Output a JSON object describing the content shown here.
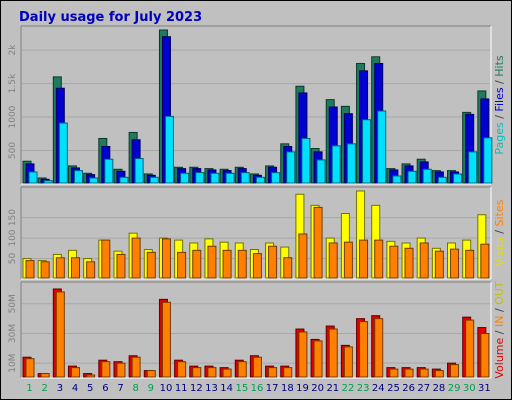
{
  "title": "Daily usage for July 2023",
  "colors": {
    "background": "#c0c0c0",
    "hits": "#1e7b5e",
    "files": "#0000d0",
    "pages": "#00e0ff",
    "visits": "#ffff00",
    "sites": "#ff8000",
    "volume": "#e00000",
    "kbin": "#ff8000",
    "kbout": "#c0c000",
    "weekday": "#000080",
    "weekend": "#00a050"
  },
  "side_labels": {
    "top": [
      {
        "text": "Pages",
        "color": "#00c0c0"
      },
      {
        "text": " / ",
        "color": "#404040"
      },
      {
        "text": "Files",
        "color": "#0000d0"
      },
      {
        "text": " / ",
        "color": "#404040"
      },
      {
        "text": "Hits",
        "color": "#1e7b5e"
      }
    ],
    "middle": [
      {
        "text": "Visits",
        "color": "#e0e000"
      },
      {
        "text": " / ",
        "color": "#404040"
      },
      {
        "text": "Sites",
        "color": "#ff8000"
      }
    ],
    "bottom": [
      {
        "text": "Volume",
        "color": "#e00000"
      },
      {
        "text": " / ",
        "color": "#404040"
      },
      {
        "text": "IN",
        "color": "#ff8000"
      },
      {
        "text": " / ",
        "color": "#404040"
      },
      {
        "text": "OUT",
        "color": "#c0c000"
      }
    ]
  },
  "chart_data": {
    "type": "bar",
    "title": "Daily usage for July 2023",
    "days": [
      "1",
      "2",
      "3",
      "4",
      "5",
      "6",
      "7",
      "8",
      "9",
      "10",
      "11",
      "12",
      "13",
      "14",
      "15",
      "16",
      "17",
      "18",
      "19",
      "20",
      "21",
      "22",
      "23",
      "24",
      "25",
      "26",
      "27",
      "28",
      "29",
      "30",
      "31"
    ],
    "weekend_days": [
      "1",
      "2",
      "8",
      "9",
      "15",
      "16",
      "22",
      "23",
      "29",
      "30"
    ],
    "panels": [
      {
        "name": "Pages / Files / Hits",
        "ylim": [
          0,
          2300
        ],
        "yticks": [
          {
            "value": 500,
            "label": "500"
          },
          {
            "value": 1000,
            "label": "1000"
          },
          {
            "value": 1500,
            "label": "1.5k"
          },
          {
            "value": 2000,
            "label": "2k"
          }
        ],
        "series": [
          {
            "name": "Hits",
            "color": "#1e7b5e",
            "values": [
              340,
              90,
              1600,
              270,
              160,
              680,
              220,
              770,
              150,
              2300,
              250,
              250,
              230,
              220,
              250,
              150,
              270,
              600,
              1460,
              530,
              1260,
              1160,
              1800,
              1900,
              230,
              300,
              370,
              200,
              200,
              1070,
              1390
            ]
          },
          {
            "name": "Files",
            "color": "#0000d0",
            "values": [
              300,
              70,
              1430,
              240,
              140,
              560,
              190,
              660,
              130,
              2200,
              230,
              230,
              210,
              200,
              230,
              130,
              250,
              560,
              1360,
              480,
              1150,
              1050,
              1690,
              1800,
              210,
              270,
              330,
              180,
              180,
              1040,
              1270
            ]
          },
          {
            "name": "Pages",
            "color": "#00e0ff",
            "values": [
              180,
              50,
              910,
              200,
              90,
              370,
              100,
              380,
              100,
              1010,
              160,
              170,
              160,
              160,
              170,
              100,
              170,
              480,
              680,
              360,
              570,
              600,
              960,
              1090,
              120,
              190,
              220,
              100,
              150,
              480,
              690
            ]
          }
        ]
      },
      {
        "name": "Visits / Sites",
        "ylim": [
          0,
          215
        ],
        "yticks": [
          {
            "value": 50,
            "label": "50"
          },
          {
            "value": 100,
            "label": "100"
          },
          {
            "value": 150,
            "label": "150"
          }
        ],
        "series": [
          {
            "name": "Visits",
            "color": "#ffff00",
            "values": [
              50,
              45,
              60,
              70,
              50,
              95,
              68,
              112,
              72,
              100,
              95,
              88,
              98,
              90,
              88,
              72,
              88,
              78,
              207,
              180,
              100,
              160,
              215,
              180,
              92,
              88,
              100,
              75,
              88,
              95,
              157
            ]
          },
          {
            "name": "Sites",
            "color": "#ff8000",
            "values": [
              45,
              42,
              52,
              52,
              42,
              95,
              60,
              100,
              65,
              98,
              65,
              70,
              80,
              70,
              70,
              62,
              80,
              52,
              110,
              175,
              88,
              90,
              95,
              95,
              80,
              75,
              88,
              68,
              73,
              70,
              85
            ]
          }
        ]
      },
      {
        "name": "Volume / IN / OUT",
        "units": "MB",
        "ylim": [
          0,
          62
        ],
        "yticks": [
          {
            "value": 10,
            "label": "10M"
          },
          {
            "value": 30,
            "label": "30M"
          },
          {
            "value": 50,
            "label": "50M"
          }
        ],
        "series": [
          {
            "name": "Volume",
            "color": "#e00000",
            "values": [
              14,
              3,
              60,
              8,
              3,
              12,
              11,
              15,
              5,
              53,
              12,
              8,
              8,
              7,
              12,
              15,
              8,
              8,
              33,
              26,
              35,
              22,
              40,
              42,
              7,
              7,
              7,
              6,
              10,
              41,
              34
            ]
          },
          {
            "name": "IN",
            "color": "#ff8000",
            "values": [
              13,
              3,
              58,
              7,
              2,
              11,
              10,
              14,
              5,
              51,
              11,
              7,
              7,
              6,
              11,
              14,
              7,
              7,
              31,
              25,
              33,
              21,
              38,
              40,
              6,
              6,
              6,
              5,
              9,
              39,
              30
            ]
          },
          {
            "name": "OUT",
            "color": "#c0c000",
            "values": [
              0,
              0,
              0,
              0,
              0,
              0,
              0,
              0,
              0,
              0,
              0,
              0,
              0,
              0,
              0,
              0,
              0,
              0,
              0,
              0,
              0,
              0,
              0,
              0,
              0,
              0,
              0,
              0,
              0,
              0,
              0
            ]
          }
        ]
      }
    ]
  }
}
